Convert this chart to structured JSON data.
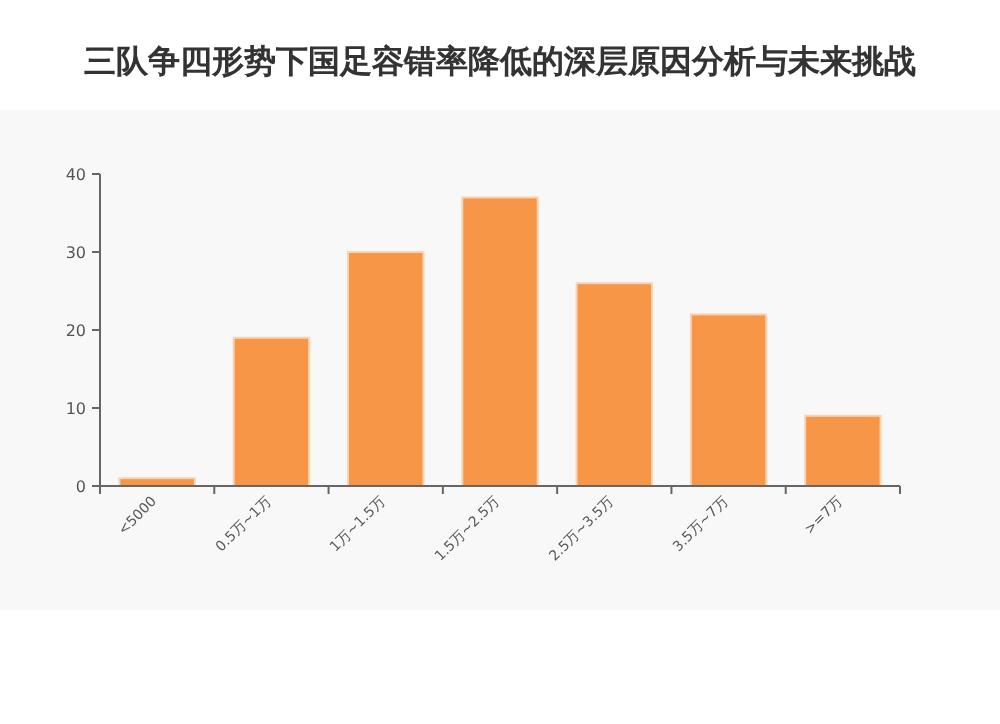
{
  "chart_data": {
    "type": "bar",
    "title": "三队争四形势下国足容错率降低的深层原因分析与未来挑战",
    "categories": [
      "<5000",
      "0.5万~1万",
      "1万~1.5万",
      "1.5万~2.5万",
      "2.5万~3.5万",
      "3.5万~7万",
      ">=7万"
    ],
    "values": [
      1,
      19,
      30,
      37,
      26,
      22,
      9
    ],
    "color": "#f79646",
    "ylim": [
      0,
      40
    ],
    "yticks": [
      0,
      10,
      20,
      30,
      40
    ]
  }
}
